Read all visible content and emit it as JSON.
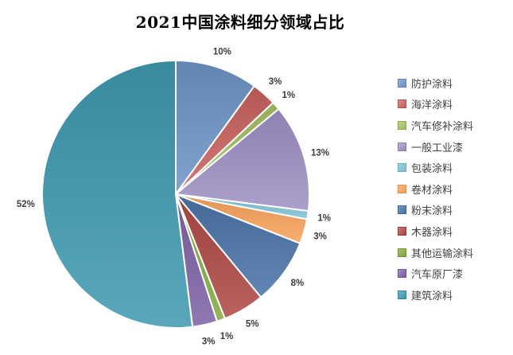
{
  "title": "2021中国涂料细分领域占比",
  "colors": {
    "background": "#ffffff",
    "title_text": "#000000",
    "percent_label_text": "#3b3b3b",
    "legend_text": "#404040",
    "slice_border": "#ffffff"
  },
  "chart_data": {
    "type": "pie",
    "title": "2021中国涂料细分领域占比",
    "direction": "clockwise",
    "start_angle_deg": 0,
    "legend_position": "right",
    "labels": "percent-outside",
    "series": [
      {
        "label": "防护涂料",
        "value": 10,
        "color": "#6D94C6"
      },
      {
        "label": "海洋涂料",
        "value": 3,
        "color": "#C9625E"
      },
      {
        "label": "汽车修补涂料",
        "value": 1,
        "color": "#A5C063"
      },
      {
        "label": "一般工业漆",
        "value": 13,
        "color": "#9F8FC3"
      },
      {
        "label": "包装涂料",
        "value": 1,
        "color": "#7FC2D6"
      },
      {
        "label": "卷材涂料",
        "value": 3,
        "color": "#F9A35C"
      },
      {
        "label": "粉末涂料",
        "value": 8,
        "color": "#4A74A8"
      },
      {
        "label": "木器涂料",
        "value": 5,
        "color": "#AE4844"
      },
      {
        "label": "其他运输涂料",
        "value": 1,
        "color": "#83A93F"
      },
      {
        "label": "汽车原厂漆",
        "value": 3,
        "color": "#7E62A6"
      },
      {
        "label": "建筑涂料",
        "value": 52,
        "color": "#3E99B0"
      }
    ]
  }
}
